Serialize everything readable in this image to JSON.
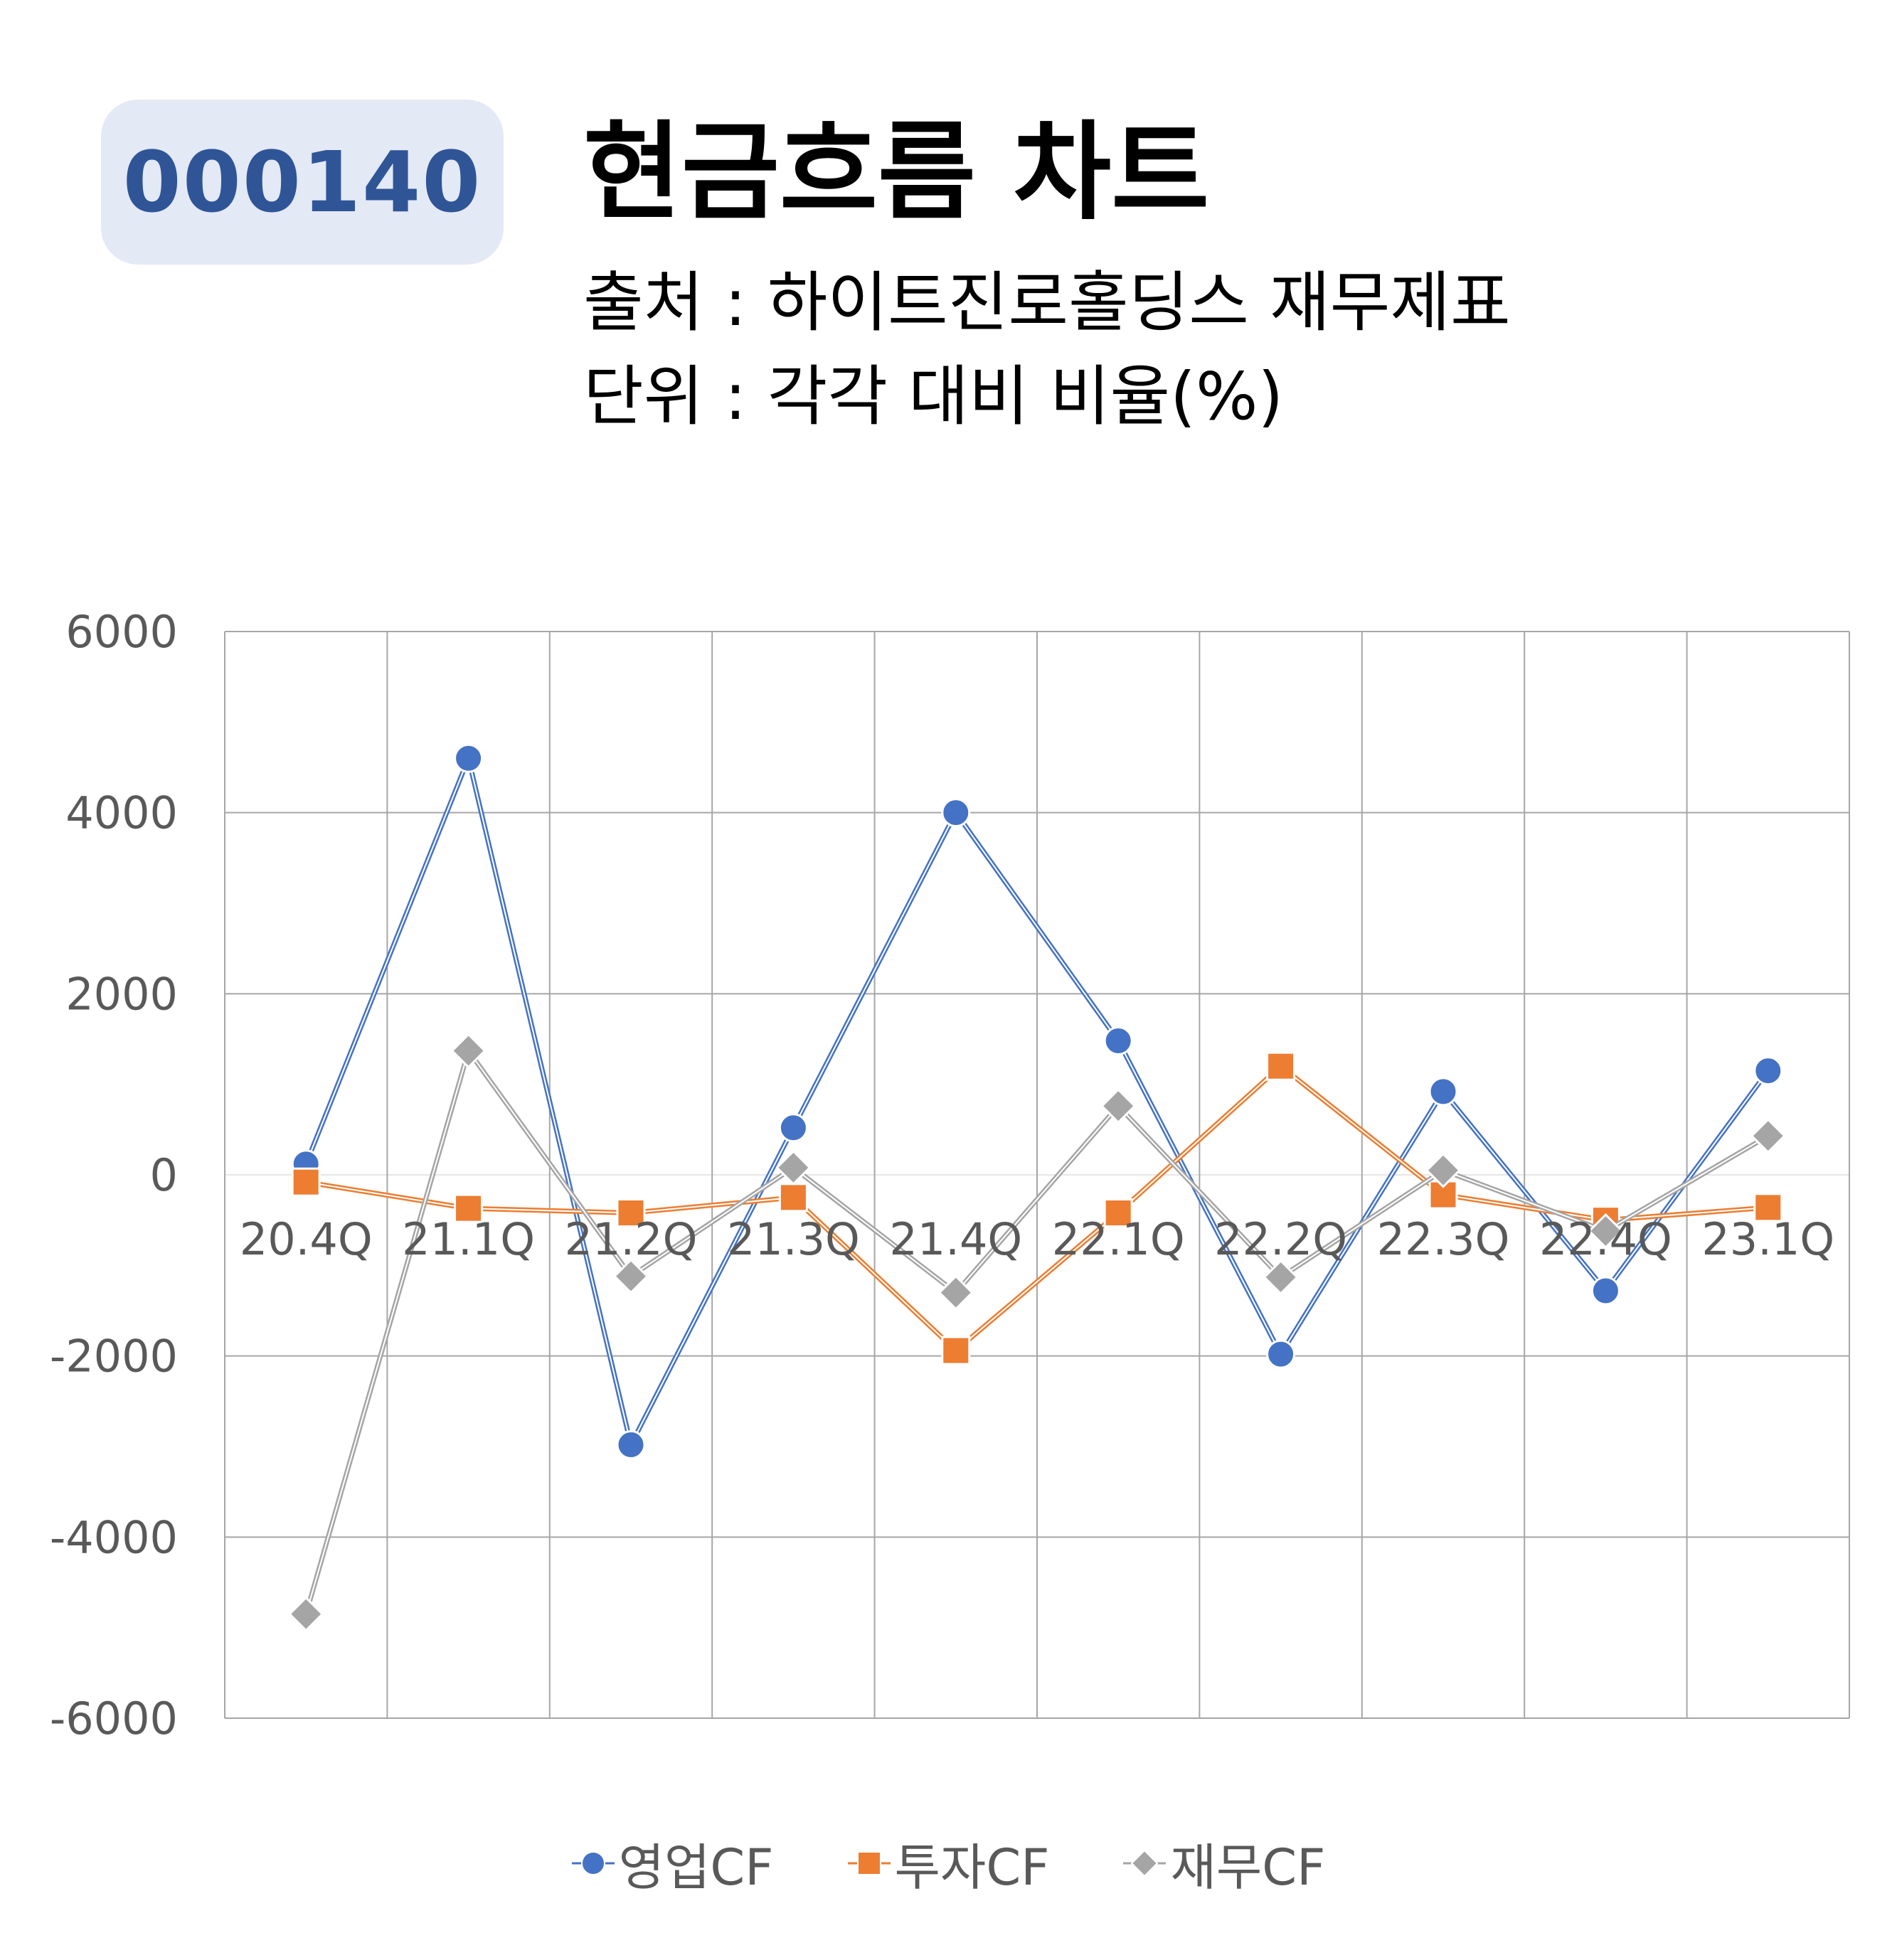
{
  "header": {
    "code": "000140",
    "title": "현금흐름 차트",
    "source": "출처 : 하이트진로홀딩스 재무제표",
    "unit": "단위 : 각각 대비 비율(%)"
  },
  "chart_data": {
    "type": "line",
    "categories": [
      "20.4Q",
      "21.1Q",
      "21.2Q",
      "21.3Q",
      "21.4Q",
      "22.1Q",
      "22.2Q",
      "22.3Q",
      "22.4Q",
      "23.1Q"
    ],
    "ylim": [
      -6000,
      6000
    ],
    "yticks": [
      6000,
      4000,
      2000,
      0,
      -2000,
      -4000,
      -6000
    ],
    "grid": true,
    "legend_position": "bottom",
    "series": [
      {
        "name": "영업CF",
        "marker": "circle",
        "color": "#4472c4",
        "values": [
          120,
          4600,
          -2980,
          520,
          4000,
          1480,
          -1980,
          920,
          -1280,
          1150
        ]
      },
      {
        "name": "투자CF",
        "marker": "square",
        "color": "#ed7d31",
        "values": [
          -80,
          -370,
          -420,
          -250,
          -1940,
          -420,
          1200,
          -220,
          -500,
          -360
        ]
      },
      {
        "name": "재무CF",
        "marker": "diamond",
        "color": "#a5a5a5",
        "values": [
          -4850,
          1370,
          -1120,
          80,
          -1300,
          760,
          -1130,
          50,
          -620,
          430
        ]
      }
    ]
  }
}
